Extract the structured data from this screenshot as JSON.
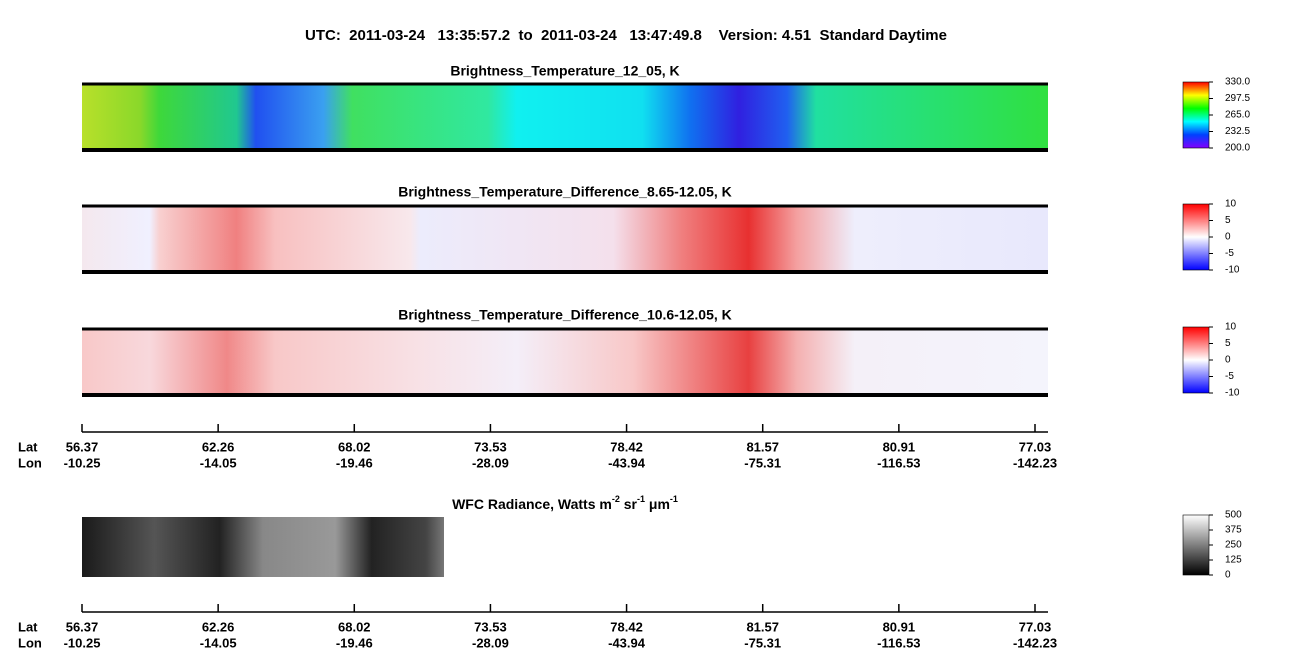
{
  "title": "UTC:  2011-03-24   13:35:57.2  to  2011-03-24   13:47:49.8    Version: 4.51  Standard Daytime",
  "panels": [
    {
      "title": "Brightness_Temperature_12_05, K",
      "colorbar": {
        "lim": [
          200,
          330
        ],
        "ticks": [
          {
            "value": 330,
            "label": "330.0"
          },
          {
            "value": 297.5,
            "label": "297.5"
          },
          {
            "value": 265,
            "label": "265.0"
          },
          {
            "value": 232.5,
            "label": "232.5"
          },
          {
            "value": 200,
            "label": "200.0"
          }
        ]
      }
    },
    {
      "title": "Brightness_Temperature_Difference_8.65-12.05, K",
      "colorbar": {
        "lim": [
          -10,
          10
        ],
        "ticks": [
          10,
          5,
          0,
          -5,
          -10
        ]
      }
    },
    {
      "title": "Brightness_Temperature_Difference_10.6-12.05, K",
      "colorbar": {
        "lim": [
          -10,
          10
        ],
        "ticks": [
          10,
          5,
          0,
          -5,
          -10
        ]
      }
    },
    {
      "title_parts": [
        "WFC Radiance, Watts m",
        "-2",
        " sr",
        "-1",
        " μm",
        "-1"
      ],
      "colorbar": {
        "lim": [
          0,
          500
        ],
        "ticks": [
          500,
          375,
          250,
          125,
          0
        ]
      }
    }
  ],
  "axes": [
    {
      "lat_label": "Lat",
      "lon_label": "Lon",
      "lat": [
        "56.37",
        "62.26",
        "68.02",
        "73.53",
        "78.42",
        "81.57",
        "80.91",
        "77.03"
      ],
      "lon": [
        "-10.25",
        "-14.05",
        "-19.46",
        "-28.09",
        "-43.94",
        "-75.31",
        "-116.53",
        "-142.23"
      ]
    },
    {
      "lat_label": "Lat",
      "lon_label": "Lon",
      "lat": [
        "56.37",
        "62.26",
        "68.02",
        "73.53",
        "78.42",
        "81.57",
        "80.91",
        "77.03"
      ],
      "lon": [
        "-10.25",
        "-14.05",
        "-19.46",
        "-28.09",
        "-43.94",
        "-75.31",
        "-116.53",
        "-142.23"
      ]
    }
  ]
}
